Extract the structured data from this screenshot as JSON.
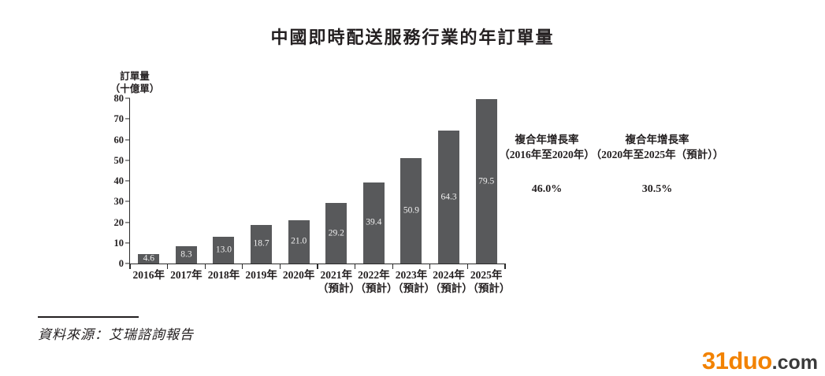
{
  "title": "中國即時配送服務行業的年訂單量",
  "chart_data": {
    "type": "bar",
    "title": "中國即時配送服務行業的年訂單量",
    "ylabel_lines": [
      "訂單量",
      "（十億單）"
    ],
    "categories": [
      "2016年",
      "2017年",
      "2018年",
      "2019年",
      "2020年",
      "2021年",
      "2022年",
      "2023年",
      "2024年",
      "2025年"
    ],
    "category_sublabels": [
      "",
      "",
      "",
      "",
      "",
      "（預計）",
      "（預計）",
      "（預計）",
      "（預計）",
      "（預計）"
    ],
    "values": [
      4.6,
      8.3,
      13.0,
      18.7,
      21.0,
      29.2,
      39.4,
      50.9,
      64.3,
      79.5
    ],
    "value_labels": [
      "4.6",
      "8.3",
      "13.0",
      "18.7",
      "21.0",
      "29.2",
      "39.4",
      "50.9",
      "64.3",
      "79.5"
    ],
    "ylim": [
      0,
      80
    ],
    "ytick_step": 10,
    "grid": false,
    "legend": "none",
    "bar_color": "#58595b",
    "value_label_color": "#f0f0f0",
    "axis_color": "#2a2a2a"
  },
  "cagr_blocks": [
    {
      "line1": "複合年增長率",
      "line2": "（2016年至2020年）",
      "value": "46.0%"
    },
    {
      "line1": "複合年增長率",
      "line2": "（2020年至2025年（預計））",
      "value": "30.5%"
    }
  ],
  "source": {
    "label": "資料來源：艾瑞諮詢報告"
  },
  "watermark": {
    "brand": "31duo",
    "suffix": ".com",
    "brand_color": "#f28200",
    "suffix_color": "#3a3a3a"
  }
}
